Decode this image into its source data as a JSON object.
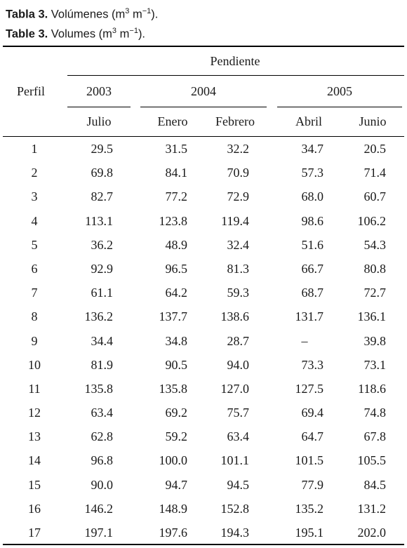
{
  "caption": {
    "es_label": "Tabla 3.",
    "es_text": " Volúmenes (m",
    "en_label": "Table 3.",
    "en_text": " Volumes (m",
    "sup3": "3",
    "unit_m": " m",
    "sup_minus1": "−1",
    "close": ")."
  },
  "table": {
    "group_header": "Pendiente",
    "perfil_header": "Perfil",
    "years": [
      "2003",
      "2004",
      "2005"
    ],
    "months": [
      "Julio",
      "Enero",
      "Febrero",
      "Abril",
      "Junio"
    ],
    "rows": [
      [
        "1",
        "29.5",
        "31.5",
        "32.2",
        "34.7",
        "20.5"
      ],
      [
        "2",
        "69.8",
        "84.1",
        "70.9",
        "57.3",
        "71.4"
      ],
      [
        "3",
        "82.7",
        "77.2",
        "72.9",
        "68.0",
        "60.7"
      ],
      [
        "4",
        "113.1",
        "123.8",
        "119.4",
        "98.6",
        "106.2"
      ],
      [
        "5",
        "36.2",
        "48.9",
        "32.4",
        "51.6",
        "54.3"
      ],
      [
        "6",
        "92.9",
        "96.5",
        "81.3",
        "66.7",
        "80.8"
      ],
      [
        "7",
        "61.1",
        "64.2",
        "59.3",
        "68.7",
        "72.7"
      ],
      [
        "8",
        "136.2",
        "137.7",
        "138.6",
        "131.7",
        "136.1"
      ],
      [
        "9",
        "34.4",
        "34.8",
        "28.7",
        "–",
        "39.8"
      ],
      [
        "10",
        "81.9",
        "90.5",
        "94.0",
        "73.3",
        "73.1"
      ],
      [
        "11",
        "135.8",
        "135.8",
        "127.0",
        "127.5",
        "118.6"
      ],
      [
        "12",
        "63.4",
        "69.2",
        "75.7",
        "69.4",
        "74.8"
      ],
      [
        "13",
        "62.8",
        "59.2",
        "63.4",
        "64.7",
        "67.8"
      ],
      [
        "14",
        "96.8",
        "100.0",
        "101.1",
        "101.5",
        "105.5"
      ],
      [
        "15",
        "90.0",
        "94.7",
        "94.5",
        "77.9",
        "84.5"
      ],
      [
        "16",
        "146.2",
        "148.9",
        "152.8",
        "135.2",
        "131.2"
      ],
      [
        "17",
        "197.1",
        "197.6",
        "194.3",
        "195.1",
        "202.0"
      ]
    ]
  }
}
